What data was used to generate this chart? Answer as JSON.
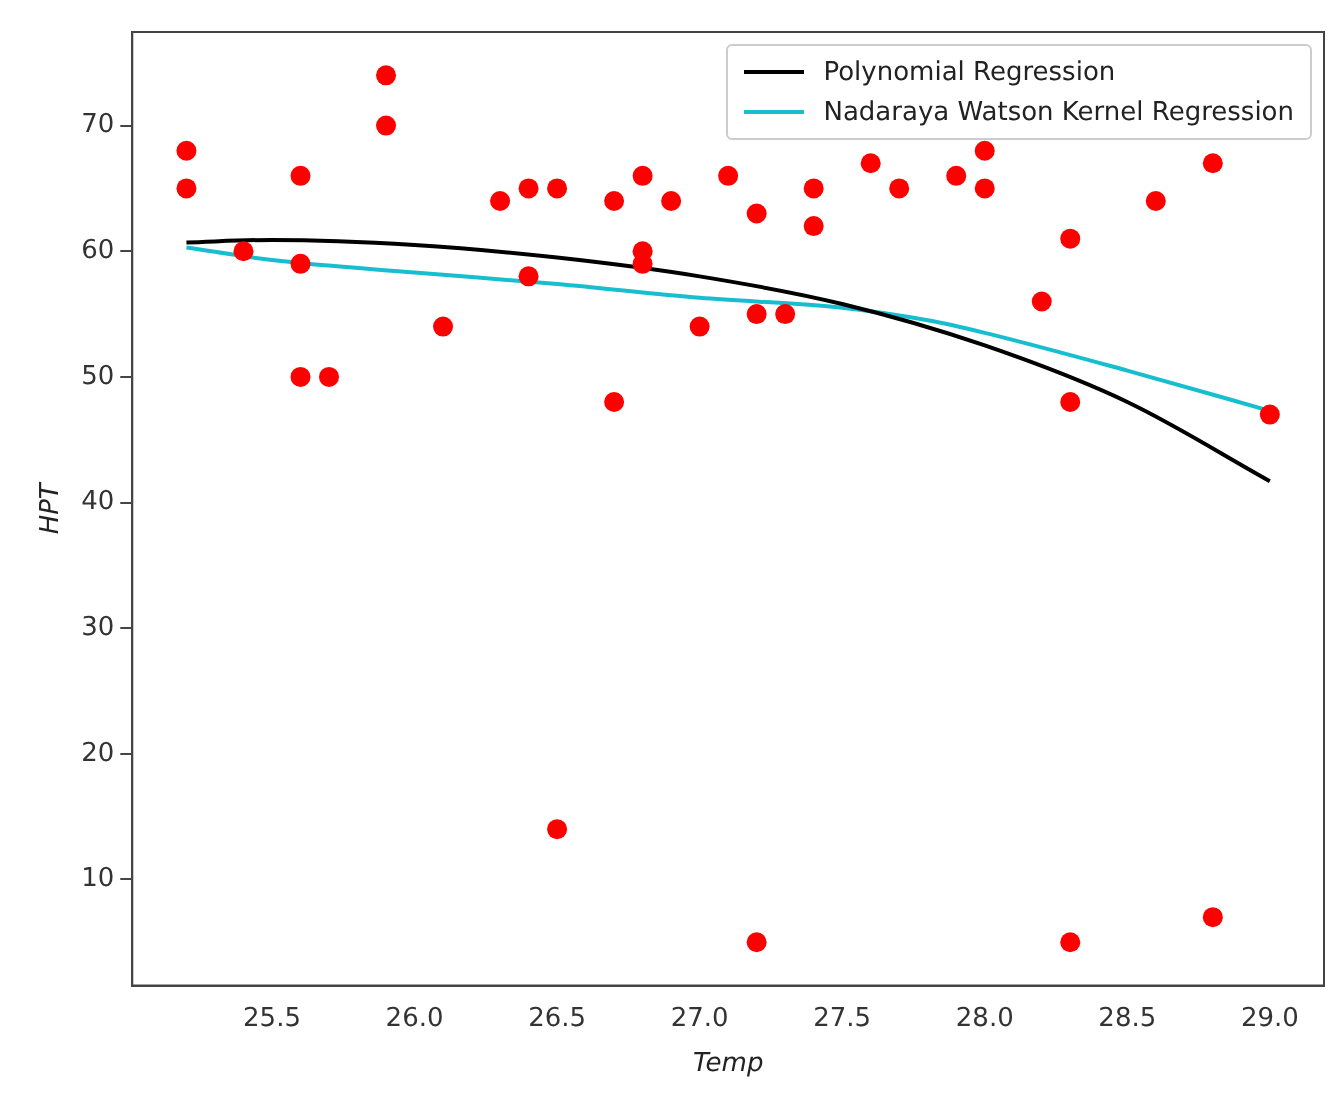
{
  "chart_data": {
    "type": "scatter",
    "xlabel": "Temp",
    "ylabel": "HPT",
    "xlim": [
      25.01,
      29.19
    ],
    "xticks": [
      {
        "value": 25.5,
        "label": "25.5"
      },
      {
        "value": 26,
        "label": "26.0"
      },
      {
        "value": 26.5,
        "label": "26.5"
      },
      {
        "value": 27,
        "label": "27.0"
      },
      {
        "value": 27.5,
        "label": "27.5"
      },
      {
        "value": 28,
        "label": "28.0"
      },
      {
        "value": 28.5,
        "label": "28.5"
      },
      {
        "value": 29,
        "label": "29.0"
      }
    ],
    "ylim": [
      1.55,
      77.45
    ],
    "yticks": [
      10,
      20,
      30,
      40,
      50,
      60,
      70
    ],
    "grid": false,
    "legend": "top right",
    "marker": "circle",
    "series": [
      {
        "color": "#ff0000",
        "x": [
          25.2,
          25.2,
          25.4,
          25.6,
          25.6,
          25.6,
          25.7,
          25.9,
          25.9,
          26.1,
          26.3,
          26.4,
          26.4,
          26.5,
          26.5,
          26.7,
          26.7,
          26.8,
          26.8,
          26.8,
          26.9,
          27.0,
          27.1,
          27.2,
          27.2,
          27.2,
          27.3,
          27.4,
          27.4,
          27.6,
          27.7,
          27.9,
          28.0,
          28.0,
          28.2,
          28.3,
          28.3,
          28.3,
          28.6,
          28.8,
          28.8,
          29.0
        ],
        "values": [
          68,
          65,
          60,
          66,
          59,
          50,
          50,
          74,
          70,
          54,
          64,
          65,
          58,
          65,
          14,
          64,
          48,
          66,
          60,
          59,
          64,
          54,
          66,
          63,
          55,
          5,
          55,
          65,
          62,
          67,
          65,
          66,
          68,
          65,
          56,
          61,
          48,
          5,
          64,
          67,
          7,
          47
        ]
      },
      {
        "type": "line",
        "name": "Polynomial Regression",
        "color": "#000000",
        "marker": "none",
        "line_style": "solid",
        "x": [
          25.2,
          25.5,
          26.0,
          26.5,
          27.0,
          27.5,
          28.0,
          28.5,
          29.0
        ],
        "values": [
          60.7,
          60.9,
          60.5,
          59.5,
          58.0,
          55.8,
          52.5,
          48.0,
          41.7
        ]
      },
      {
        "type": "line",
        "name": "Nadaraya Watson Kernel Regression",
        "color": "#17becf",
        "marker": "none",
        "line_style": "solid",
        "x": [
          25.2,
          25.5,
          26.0,
          26.5,
          27.0,
          27.5,
          27.8,
          28.0,
          28.5,
          29.0
        ],
        "values": [
          60.3,
          59.3,
          58.3,
          57.4,
          56.3,
          55.5,
          54.5,
          53.5,
          50.5,
          47.3
        ]
      }
    ]
  }
}
